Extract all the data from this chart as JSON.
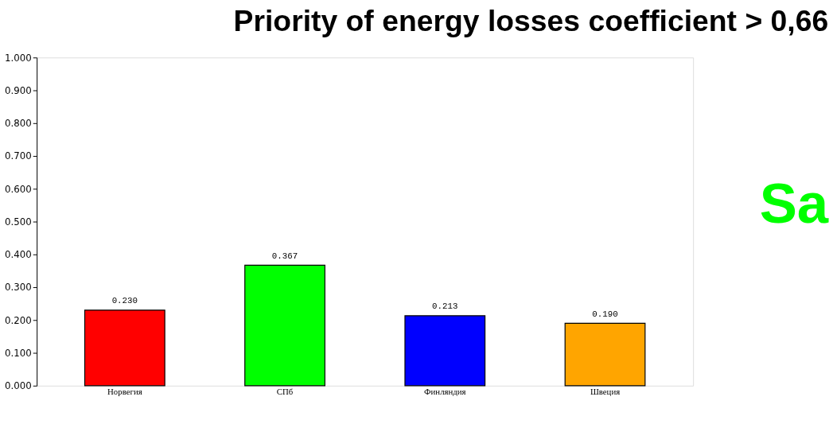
{
  "chart_data": {
    "type": "bar",
    "title": "Priority of energy losses coefficient > 0,66",
    "categories": [
      "Норвегия",
      "СПб",
      "Финляндия",
      "Швеция"
    ],
    "values": [
      0.23,
      0.367,
      0.213,
      0.19
    ],
    "colors": [
      "#ff0000",
      "#00ff00",
      "#0000ff",
      "#ffa500"
    ],
    "value_labels": [
      "0.230",
      "0.367",
      "0.213",
      "0.190"
    ],
    "ylim": [
      0,
      1
    ],
    "yticks": [
      {
        "value": 0,
        "label": "0.000"
      },
      {
        "value": 0.1,
        "label": "0.100"
      },
      {
        "value": 0.2,
        "label": "0.200"
      },
      {
        "value": 0.3,
        "label": "0.300"
      },
      {
        "value": 0.4,
        "label": "0.400"
      },
      {
        "value": 0.5,
        "label": "0.500"
      },
      {
        "value": 0.6,
        "label": "0.600"
      },
      {
        "value": 0.7,
        "label": "0.700"
      },
      {
        "value": 0.8,
        "label": "0.800"
      },
      {
        "value": 0.9,
        "label": "0.900"
      },
      {
        "value": 1,
        "label": "1.000"
      }
    ],
    "grid": false,
    "annotations": [
      "Sa"
    ]
  }
}
